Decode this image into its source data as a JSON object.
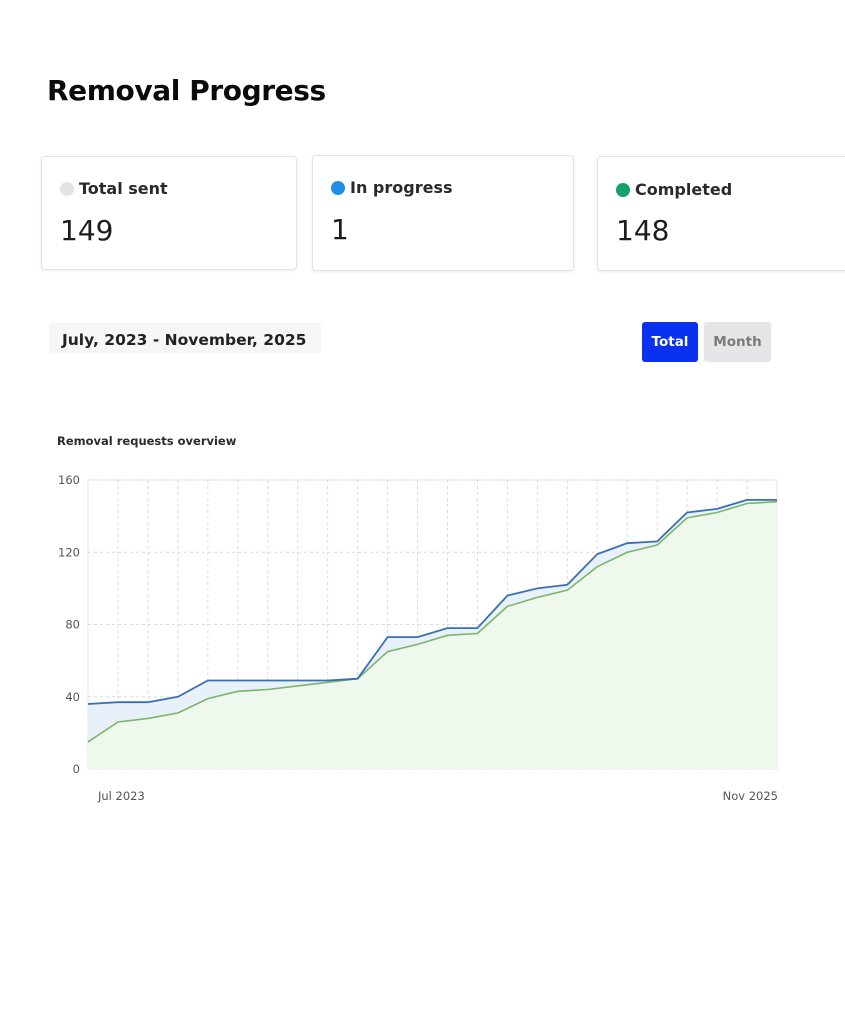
{
  "page": {
    "title": "Removal Progress"
  },
  "stats": [
    {
      "label": "Total sent",
      "value": "149",
      "color": "#e2e3e6"
    },
    {
      "label": "In progress",
      "value": "1",
      "color": "#1e8ee6"
    },
    {
      "label": "Completed",
      "value": "148",
      "color": "#12a16b"
    }
  ],
  "date_range": "July, 2023 - November, 2025",
  "toggle": {
    "total_label": "Total",
    "month_label": "Month",
    "active": "Total"
  },
  "colors": {
    "total_line": "#3a6fb5",
    "completed_line": "#7bb56c",
    "total_fill": "#e8f1fa",
    "completed_fill": "#eef8ec",
    "accent": "#0a30f0"
  },
  "chart_data": {
    "type": "area",
    "title": "Removal requests overview",
    "x_start_label": "Jul 2023",
    "x_end_label": "Nov 2025",
    "ylim": [
      0,
      160
    ],
    "yticks": [
      "0",
      "40",
      "80",
      "120",
      "160"
    ],
    "grid": true,
    "series": [
      {
        "values": [
          36,
          37,
          37,
          40,
          49,
          49,
          49,
          49,
          49,
          50,
          73,
          73,
          78,
          78,
          96,
          100,
          102,
          119,
          125,
          126,
          142,
          144,
          149,
          149
        ]
      },
      {
        "values": [
          15,
          26,
          28,
          31,
          39,
          43,
          44,
          46,
          48,
          50,
          65,
          69,
          74,
          75,
          90,
          95,
          99,
          112,
          120,
          124,
          139,
          142,
          147,
          148
        ]
      }
    ]
  }
}
